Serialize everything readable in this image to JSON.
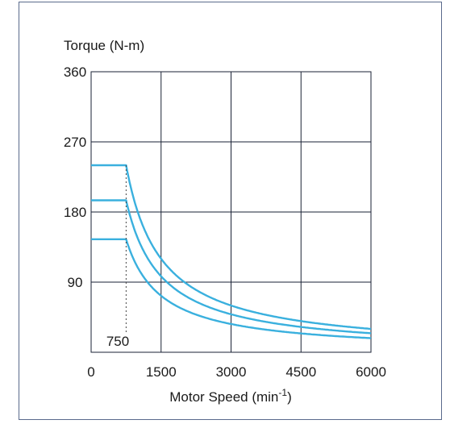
{
  "chart_data": {
    "type": "line",
    "ylabel": "Torque (N-m)",
    "xlabel": "Motor Speed (min",
    "xlabel_sup": "-1",
    "xlabel_close": ")",
    "xlim": [
      0,
      6000
    ],
    "ylim": [
      0,
      360
    ],
    "xticks": [
      0,
      1500,
      3000,
      4500,
      6000
    ],
    "yticks": [
      90,
      180,
      270,
      360
    ],
    "xtick_labels": [
      "0",
      "1500",
      "3000",
      "4500",
      "6000"
    ],
    "ytick_labels": [
      "90",
      "180",
      "270",
      "360"
    ],
    "grid": true,
    "annotation": {
      "text": "750",
      "x": 750
    },
    "base_speed": 750,
    "series": [
      {
        "constant_torque": 240,
        "values": [
          [
            0,
            240
          ],
          [
            750,
            240
          ],
          [
            1500,
            120
          ],
          [
            3000,
            60
          ],
          [
            4500,
            40
          ],
          [
            6000,
            30
          ]
        ]
      },
      {
        "constant_torque": 195,
        "values": [
          [
            0,
            195
          ],
          [
            750,
            195
          ],
          [
            1500,
            97.5
          ],
          [
            3000,
            48.8
          ],
          [
            4500,
            32.5
          ],
          [
            6000,
            24.4
          ]
        ]
      },
      {
        "constant_torque": 145,
        "values": [
          [
            0,
            145
          ],
          [
            750,
            145
          ],
          [
            1500,
            72.5
          ],
          [
            3000,
            36.3
          ],
          [
            4500,
            24.2
          ],
          [
            6000,
            18.1
          ]
        ]
      }
    ],
    "colors": {
      "curve": "#3ab0de",
      "grid": "#1a2235",
      "dotted": "#444444"
    }
  }
}
